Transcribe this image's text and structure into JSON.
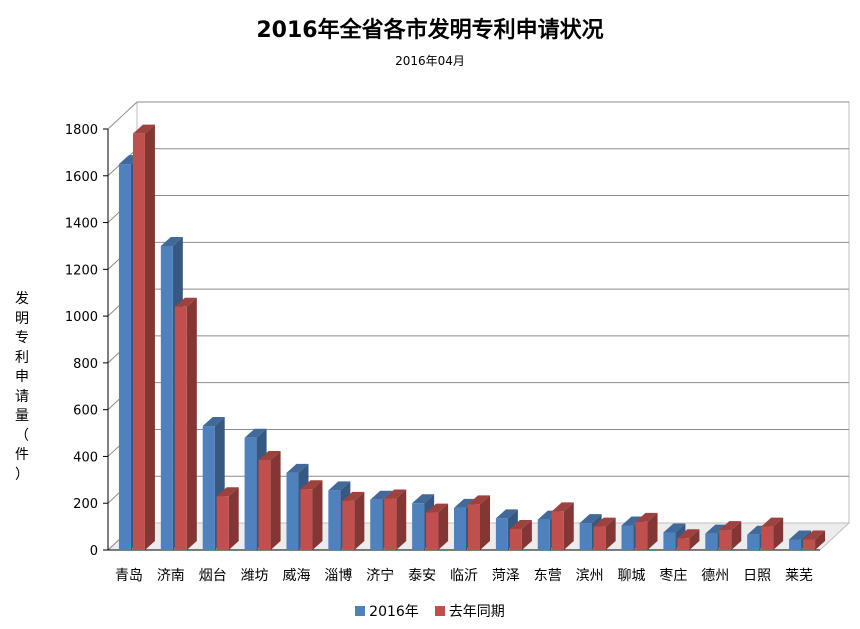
{
  "chart_data": {
    "type": "bar",
    "title": "2016年全省各市发明专利申请状况",
    "subtitle": "2016年04月",
    "ylabel": "发明专利申请量（件）",
    "xlabel": "",
    "ylim": [
      0,
      1800
    ],
    "yticks": [
      0,
      200,
      400,
      600,
      800,
      1000,
      1200,
      1400,
      1600,
      1800
    ],
    "grid": true,
    "legend": "bottom",
    "categories": [
      "青岛",
      "济南",
      "烟台",
      "潍坊",
      "威海",
      "淄博",
      "济宁",
      "泰安",
      "临沂",
      "菏泽",
      "东营",
      "滨州",
      "聊城",
      "枣庄",
      "德州",
      "日照",
      "莱芜"
    ],
    "series": [
      {
        "name": "2016年",
        "color": "#4f81bd",
        "values": [
          1650,
          1300,
          530,
          480,
          330,
          255,
          215,
          200,
          180,
          135,
          130,
          115,
          105,
          75,
          70,
          65,
          45
        ]
      },
      {
        "name": "去年同期",
        "color": "#c0504d",
        "values": [
          1780,
          1040,
          230,
          385,
          260,
          210,
          220,
          160,
          195,
          90,
          165,
          100,
          120,
          50,
          85,
          100,
          45
        ]
      }
    ]
  }
}
